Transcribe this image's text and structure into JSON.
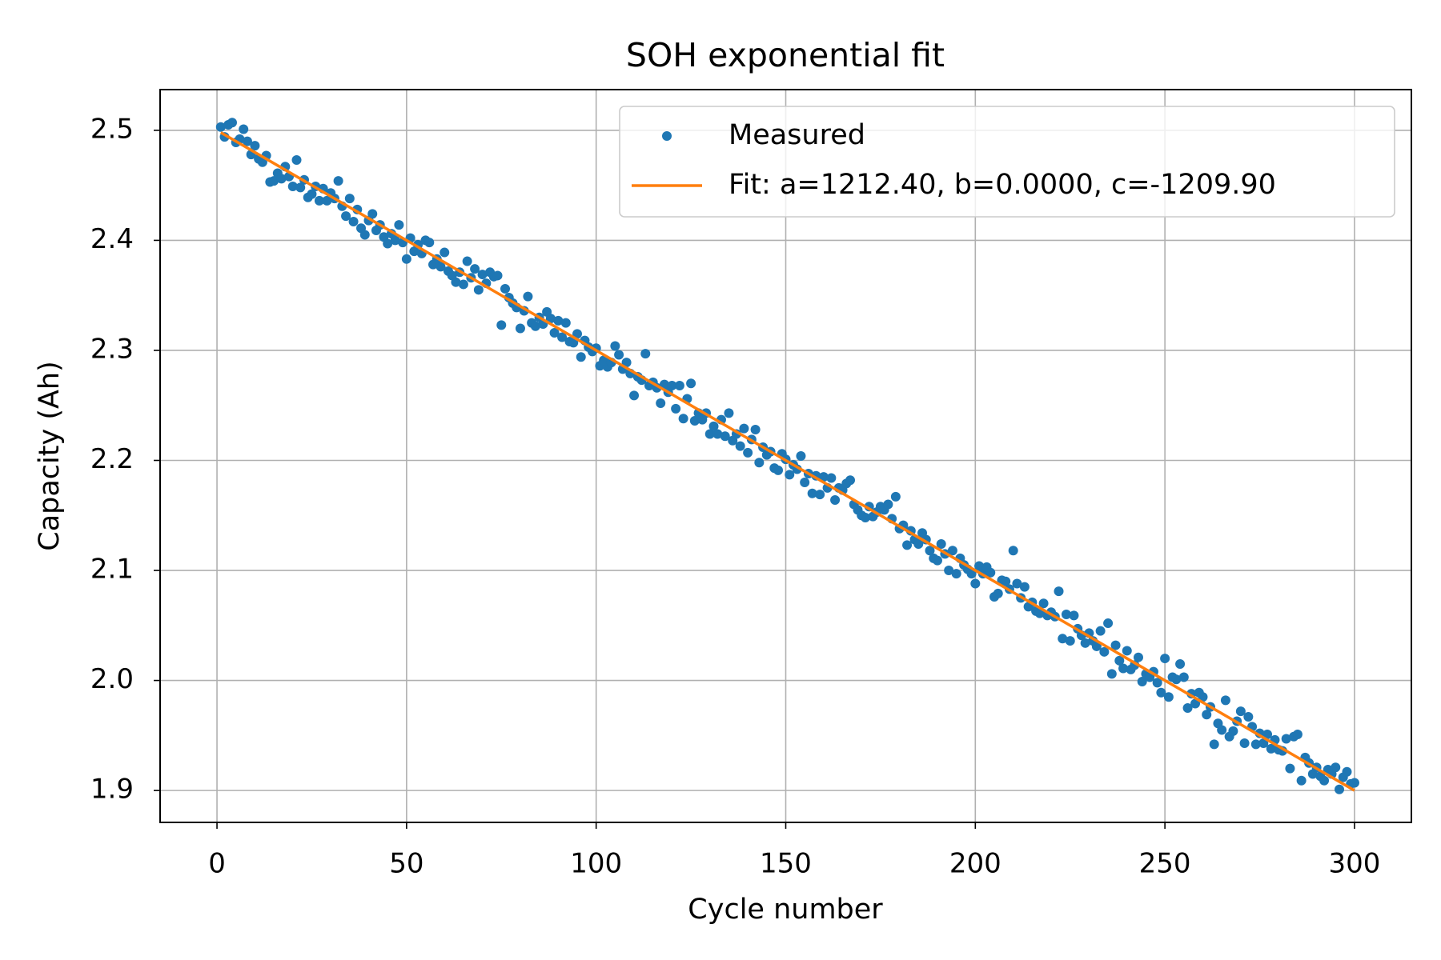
{
  "chart_data": {
    "type": "scatter",
    "title": "SOH exponential fit",
    "x_label": "Cycle number",
    "y_label": "Capacity (Ah)",
    "xlim": [
      -15,
      315
    ],
    "ylim": [
      1.871,
      2.537
    ],
    "xticks": [
      0,
      50,
      100,
      150,
      200,
      250,
      300
    ],
    "yticks": [
      1.9,
      {
        "value": 2.0,
        "label": "2.0"
      },
      2.1,
      2.2,
      2.3,
      2.4,
      2.5
    ],
    "grid": true,
    "legend": "upper right",
    "series": [
      {
        "name": "Measured",
        "type": "scatter",
        "color": "#1f77b4",
        "x": [
          1,
          2,
          3,
          4,
          5,
          6,
          7,
          8,
          9,
          10,
          11,
          12,
          13,
          14,
          15,
          16,
          17,
          18,
          19,
          20,
          21,
          22,
          23,
          24,
          25,
          26,
          27,
          28,
          29,
          30,
          31,
          32,
          33,
          34,
          35,
          36,
          37,
          38,
          39,
          40,
          41,
          42,
          43,
          44,
          45,
          46,
          47,
          48,
          49,
          50,
          51,
          52,
          53,
          54,
          55,
          56,
          57,
          58,
          59,
          60,
          61,
          62,
          63,
          64,
          65,
          66,
          67,
          68,
          69,
          70,
          71,
          72,
          73,
          74,
          75,
          76,
          77,
          78,
          79,
          80,
          81,
          82,
          83,
          84,
          85,
          86,
          87,
          88,
          89,
          90,
          91,
          92,
          93,
          94,
          95,
          96,
          97,
          98,
          99,
          100,
          101,
          102,
          103,
          104,
          105,
          106,
          107,
          108,
          109,
          110,
          111,
          112,
          113,
          114,
          115,
          116,
          117,
          118,
          119,
          120,
          121,
          122,
          123,
          124,
          125,
          126,
          127,
          128,
          129,
          130,
          131,
          132,
          133,
          134,
          135,
          136,
          137,
          138,
          139,
          140,
          141,
          142,
          143,
          144,
          145,
          146,
          147,
          148,
          149,
          150,
          151,
          152,
          153,
          154,
          155,
          156,
          157,
          158,
          159,
          160,
          161,
          162,
          163,
          164,
          165,
          166,
          167,
          168,
          169,
          170,
          171,
          172,
          173,
          174,
          175,
          176,
          177,
          178,
          179,
          180,
          181,
          182,
          183,
          184,
          185,
          186,
          187,
          188,
          189,
          190,
          191,
          192,
          193,
          194,
          195,
          196,
          197,
          198,
          199,
          200,
          201,
          202,
          203,
          204,
          205,
          206,
          207,
          208,
          209,
          210,
          211,
          212,
          213,
          214,
          215,
          216,
          217,
          218,
          219,
          220,
          221,
          222,
          223,
          224,
          225,
          226,
          227,
          228,
          229,
          230,
          231,
          232,
          233,
          234,
          235,
          236,
          237,
          238,
          239,
          240,
          241,
          242,
          243,
          244,
          245,
          246,
          247,
          248,
          249,
          250,
          251,
          252,
          253,
          254,
          255,
          256,
          257,
          258,
          259,
          260,
          261,
          262,
          263,
          264,
          265,
          266,
          267,
          268,
          269,
          270,
          271,
          272,
          273,
          274,
          275,
          276,
          277,
          278,
          279,
          280,
          281,
          282,
          283,
          284,
          285,
          286,
          287,
          288,
          289,
          290,
          291,
          292,
          293,
          294,
          295,
          296,
          297,
          298,
          299,
          300
        ],
        "values": [
          2.503,
          2.494,
          2.505,
          2.507,
          2.489,
          2.492,
          2.501,
          2.49,
          2.478,
          2.486,
          2.474,
          2.471,
          2.477,
          2.453,
          2.454,
          2.461,
          2.456,
          2.467,
          2.458,
          2.449,
          2.473,
          2.448,
          2.455,
          2.439,
          2.442,
          2.449,
          2.436,
          2.447,
          2.436,
          2.443,
          2.438,
          2.454,
          2.431,
          2.422,
          2.438,
          2.417,
          2.428,
          2.411,
          2.405,
          2.418,
          2.424,
          2.409,
          2.414,
          2.403,
          2.397,
          2.406,
          2.4,
          2.414,
          2.398,
          2.383,
          2.402,
          2.39,
          2.396,
          2.388,
          2.4,
          2.398,
          2.378,
          2.383,
          2.376,
          2.389,
          2.372,
          2.368,
          2.362,
          2.371,
          2.36,
          2.381,
          2.366,
          2.374,
          2.355,
          2.369,
          2.361,
          2.371,
          2.367,
          2.368,
          2.323,
          2.356,
          2.348,
          2.343,
          2.339,
          2.32,
          2.336,
          2.349,
          2.325,
          2.322,
          2.33,
          2.324,
          2.335,
          2.329,
          2.316,
          2.327,
          2.312,
          2.325,
          2.308,
          2.307,
          2.315,
          2.294,
          2.309,
          2.303,
          2.299,
          2.302,
          2.286,
          2.291,
          2.285,
          2.289,
          2.304,
          2.296,
          2.283,
          2.289,
          2.279,
          2.259,
          2.276,
          2.273,
          2.297,
          2.268,
          2.271,
          2.266,
          2.252,
          2.269,
          2.262,
          2.268,
          2.247,
          2.268,
          2.238,
          2.256,
          2.27,
          2.236,
          2.243,
          2.237,
          2.243,
          2.224,
          2.231,
          2.224,
          2.237,
          2.222,
          2.243,
          2.218,
          2.224,
          2.213,
          2.229,
          2.207,
          2.219,
          2.228,
          2.198,
          2.212,
          2.205,
          2.208,
          2.193,
          2.191,
          2.206,
          2.201,
          2.187,
          2.196,
          2.192,
          2.204,
          2.18,
          2.188,
          2.17,
          2.186,
          2.169,
          2.185,
          2.175,
          2.184,
          2.164,
          2.175,
          2.173,
          2.179,
          2.182,
          2.16,
          2.155,
          2.15,
          2.148,
          2.158,
          2.149,
          2.153,
          2.158,
          2.155,
          2.16,
          2.147,
          2.167,
          2.138,
          2.141,
          2.123,
          2.136,
          2.128,
          2.124,
          2.134,
          2.128,
          2.118,
          2.111,
          2.109,
          2.124,
          2.115,
          2.1,
          2.118,
          2.097,
          2.111,
          2.105,
          2.101,
          2.097,
          2.088,
          2.104,
          2.097,
          2.103,
          2.098,
          2.076,
          2.079,
          2.091,
          2.09,
          2.083,
          2.118,
          2.088,
          2.075,
          2.085,
          2.067,
          2.071,
          2.063,
          2.061,
          2.07,
          2.059,
          2.062,
          2.058,
          2.081,
          2.038,
          2.06,
          2.036,
          2.059,
          2.047,
          2.041,
          2.034,
          2.043,
          2.036,
          2.031,
          2.045,
          2.026,
          2.052,
          2.006,
          2.032,
          2.018,
          2.011,
          2.027,
          2.01,
          2.014,
          2.021,
          1.999,
          2.006,
          2.003,
          2.008,
          1.998,
          1.989,
          2.02,
          1.985,
          2.003,
          2.001,
          2.015,
          2.003,
          1.975,
          1.988,
          1.979,
          1.989,
          1.985,
          1.969,
          1.976,
          1.942,
          1.961,
          1.955,
          1.982,
          1.949,
          1.954,
          1.963,
          1.972,
          1.943,
          1.967,
          1.958,
          1.942,
          1.952,
          1.943,
          1.951,
          1.938,
          1.946,
          1.937,
          1.936,
          1.947,
          1.92,
          1.949,
          1.951,
          1.909,
          1.93,
          1.925,
          1.915,
          1.921,
          1.913,
          1.909,
          1.919,
          1.915,
          1.921,
          1.901,
          1.912,
          1.917,
          1.906,
          1.907
        ]
      },
      {
        "name": "Fit: a=1212.40, b=0.0000, c=-1209.90",
        "type": "line",
        "color": "#ff7f0e",
        "x": [
          1,
          300
        ],
        "values": [
          2.498,
          1.9
        ]
      }
    ]
  }
}
